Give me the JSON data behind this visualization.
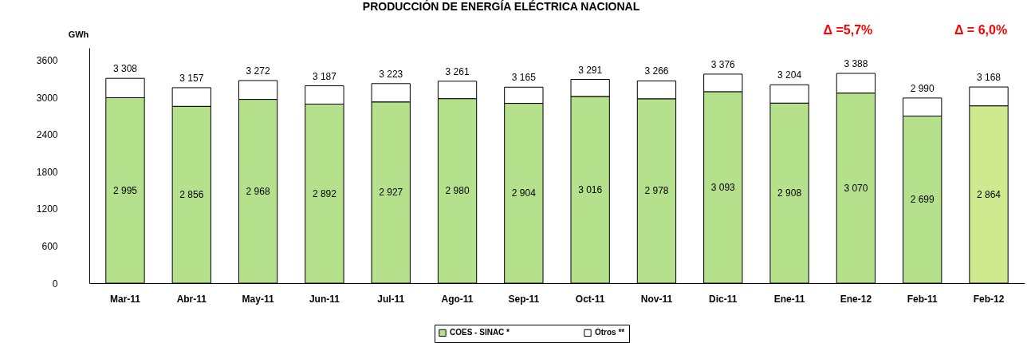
{
  "chart_data": {
    "type": "bar",
    "title": "PRODUCCIÓN DE ENERGÍA ELÉCTRICA NACIONAL",
    "ylabel": "GWh",
    "categories": [
      "Mar-11",
      "Abr-11",
      "May-11",
      "Jun-11",
      "Jul-11",
      "Ago-11",
      "Sep-11",
      "Oct-11",
      "Nov-11",
      "Dic-11",
      "Ene-11",
      "Ene-12",
      "Feb-11",
      "Feb-12"
    ],
    "stacked": true,
    "series": [
      {
        "name": "COES - SINAC *",
        "color": "#b5e08c",
        "colors": [
          "#b5e08c",
          "#b5e08c",
          "#b5e08c",
          "#b5e08c",
          "#b5e08c",
          "#b5e08c",
          "#b5e08c",
          "#b5e08c",
          "#b5e08c",
          "#b5e08c",
          "#b5e08c",
          "#b5e08c",
          "#b5e08c",
          "#cfe98f"
        ],
        "values": [
          2995,
          2856,
          2968,
          2892,
          2927,
          2980,
          2904,
          3016,
          2978,
          3093,
          2908,
          3070,
          2699,
          2864
        ],
        "value_labels": [
          "2 995",
          "2 856",
          "2 968",
          "2 892",
          "2 927",
          "2 980",
          "2 904",
          "3 016",
          "2 978",
          "3 093",
          "2 908",
          "3 070",
          "2 699",
          "2 864"
        ]
      },
      {
        "name": "Otros **",
        "color": "#ffffff",
        "values": [
          313,
          301,
          304,
          295,
          296,
          281,
          261,
          275,
          288,
          283,
          296,
          318,
          291,
          304
        ]
      }
    ],
    "totals": [
      "3 308",
      "3 157",
      "3 272",
      "3 187",
      "3 223",
      "3 261",
      "3 165",
      "3 291",
      "3 266",
      "3 376",
      "3 204",
      "3 388",
      "2 990",
      "3 168"
    ],
    "ylim": [
      0,
      3800
    ],
    "yticks": [
      0,
      600,
      1200,
      1800,
      2400,
      3000,
      3600
    ],
    "grid": false,
    "legend": "bottom",
    "annotations": [
      "Δ =5,7%",
      "Δ = 6,0%"
    ]
  }
}
